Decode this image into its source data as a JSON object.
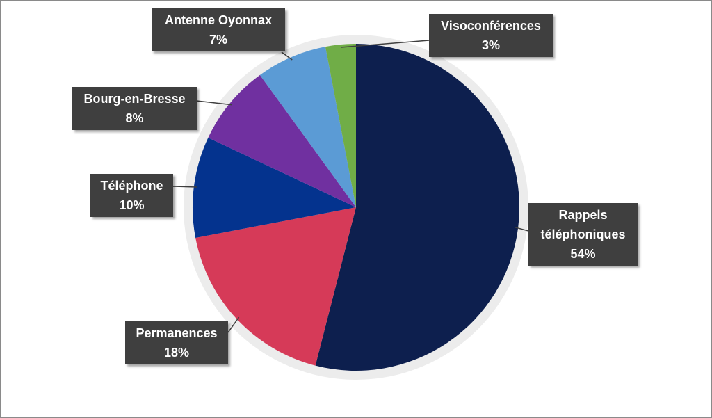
{
  "chart_data": {
    "type": "pie",
    "categories": [
      "Rappels téléphoniques",
      "Permanences",
      "Téléphone",
      "Bourg-en-Bresse",
      "Antenne Oyonnax",
      "Visoconférences"
    ],
    "values": [
      54,
      18,
      10,
      8,
      7,
      3
    ],
    "value_labels": [
      "54%",
      "18%",
      "10%",
      "8%",
      "7%",
      "3%"
    ],
    "colors": [
      "#0d1f4e",
      "#d63a58",
      "#04338e",
      "#7030a0",
      "#5b9bd5",
      "#70ad47"
    ]
  }
}
